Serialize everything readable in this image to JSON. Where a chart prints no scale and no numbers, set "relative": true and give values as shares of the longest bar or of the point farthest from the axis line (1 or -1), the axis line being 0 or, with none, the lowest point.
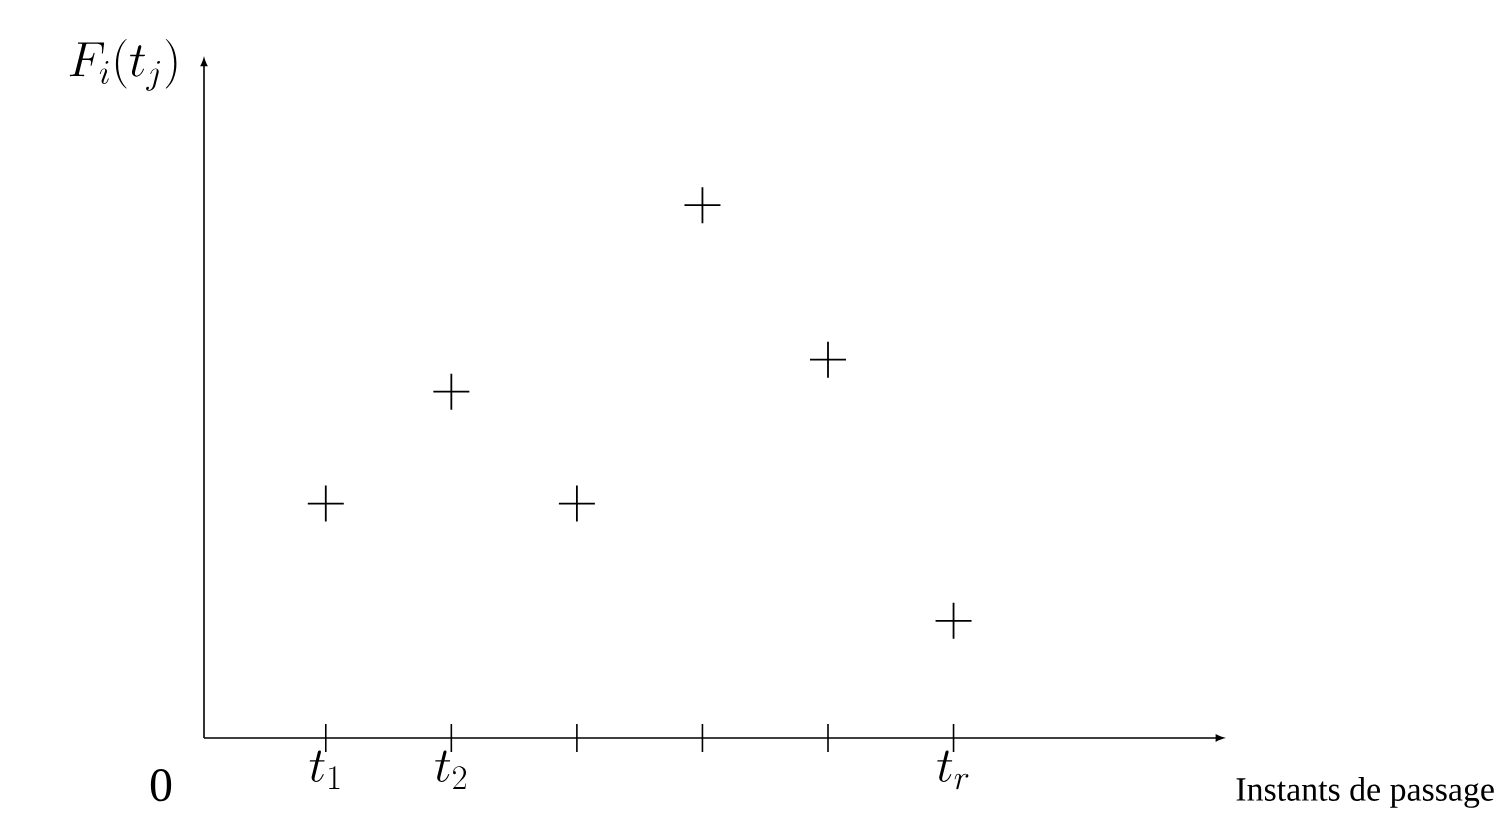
{
  "chart_data": {
    "type": "scatter",
    "relative": true,
    "categories": [
      "t_1",
      "t_2",
      null,
      null,
      null,
      "t_r"
    ],
    "series": [
      {
        "color": "#000000",
        "values": [
          0.44,
          0.65,
          0.44,
          1,
          0.71,
          0.22
        ]
      }
    ],
    "marker": "cross",
    "grid": false,
    "annotations": [
      "0",
      "Instants de passage",
      "F_i(t_j)"
    ]
  }
}
